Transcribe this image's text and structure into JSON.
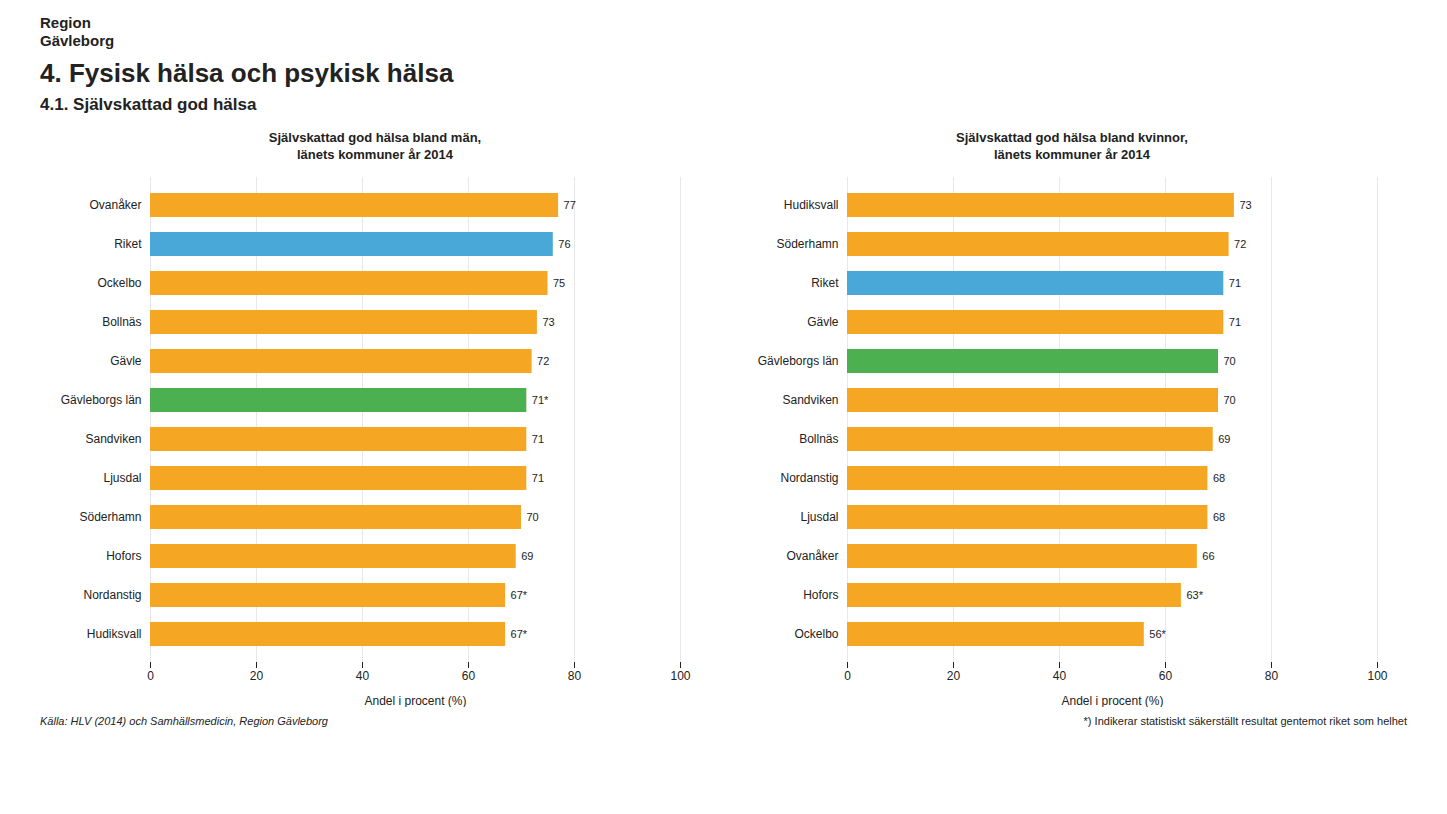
{
  "title": "4. Fysisk hälsa och psykisk hälsa",
  "subtitle": "4.1. Självskattad god hälsa",
  "annotations": [
    "Region",
    "Gävleborg",
    "Källa: HLV (2014) och Samhällsmedicin, Region Gävleborg",
    "*) Indikerar  statistiskt säkerställt resultat gentemot riket  som helhet"
  ],
  "chart_data": [
    {
      "type": "bar",
      "orientation": "horizontal",
      "title": "Självskattad god hälsa bland män,",
      "subtitle": "länets kommuner år 2014",
      "categories": [
        "Ovanåker",
        "Riket",
        "Ockelbo",
        "Bollnäs",
        "Gävle",
        "Gävleborgs län",
        "Sandviken",
        "Ljusdal",
        "Söderhamn",
        "Hofors",
        "Nordanstig",
        "Hudiksvall"
      ],
      "values": [
        77,
        76,
        75,
        73,
        72,
        71,
        71,
        71,
        70,
        69,
        67,
        67
      ],
      "value_labels": [
        "77",
        "76",
        "75",
        "73",
        "72",
        "71*",
        "71",
        "71",
        "70",
        "69",
        "67*",
        "67*"
      ],
      "colors": [
        "#F5A623",
        "#4AA8D8",
        "#F5A623",
        "#F5A623",
        "#F5A623",
        "#4CAF50",
        "#F5A623",
        "#F5A623",
        "#F5A623",
        "#F5A623",
        "#F5A623",
        "#F5A623"
      ],
      "xlabel": "Andel i procent (%)",
      "xlim": [
        0,
        100
      ],
      "xticks": [
        0,
        20,
        40,
        60,
        80,
        100
      ],
      "grid": true,
      "data_labels": true
    },
    {
      "type": "bar",
      "orientation": "horizontal",
      "title": "Självskattad god hälsa bland kvinnor,",
      "subtitle": "länets kommuner år 2014",
      "categories": [
        "Hudiksvall",
        "Söderhamn",
        "Riket",
        "Gävle",
        "Gävleborgs län",
        "Sandviken",
        "Bollnäs",
        "Nordanstig",
        "Ljusdal",
        "Ovanåker",
        "Hofors",
        "Ockelbo"
      ],
      "values": [
        73,
        72,
        71,
        71,
        70,
        70,
        69,
        68,
        68,
        66,
        63,
        56
      ],
      "value_labels": [
        "73",
        "72",
        "71",
        "71",
        "70",
        "70",
        "69",
        "68",
        "68",
        "66",
        "63*",
        "56*"
      ],
      "colors": [
        "#F5A623",
        "#F5A623",
        "#4AA8D8",
        "#F5A623",
        "#4CAF50",
        "#F5A623",
        "#F5A623",
        "#F5A623",
        "#F5A623",
        "#F5A623",
        "#F5A623",
        "#F5A623"
      ],
      "xlabel": "Andel i procent (%)",
      "xlim": [
        0,
        100
      ],
      "xticks": [
        0,
        20,
        40,
        60,
        80,
        100
      ],
      "grid": true,
      "data_labels": true
    }
  ]
}
